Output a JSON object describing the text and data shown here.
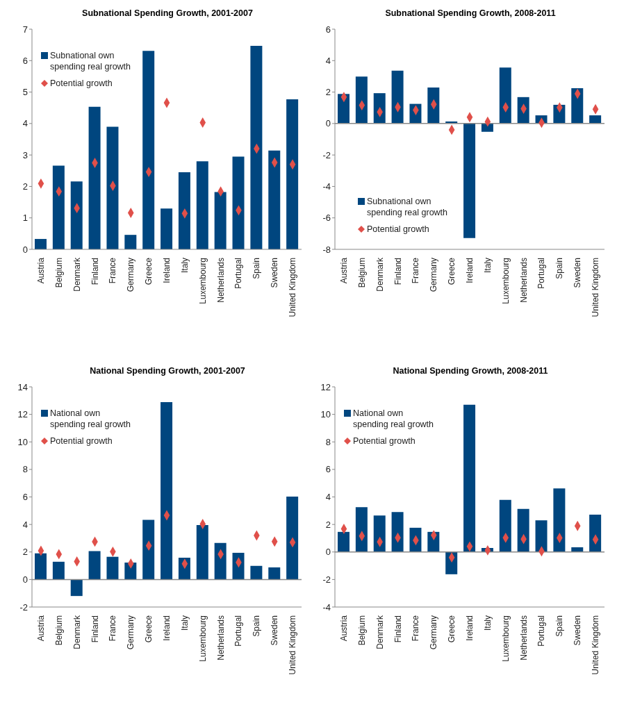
{
  "chart_data": [
    {
      "type": "bar",
      "title": "Subnational Spending Growth, 2001-2007",
      "categories": [
        "Austria",
        "Belgium",
        "Denmark",
        "Finland",
        "France",
        "Germany",
        "Greece",
        "Ireland",
        "Italy",
        "Luxembourg",
        "Netherlands",
        "Portugal",
        "Spain",
        "Sweden",
        "United Kingdom"
      ],
      "series": [
        {
          "name": "Subnational own spending real growth",
          "color": "#00467f",
          "values": [
            0.33,
            2.66,
            2.16,
            4.53,
            3.9,
            0.46,
            6.31,
            1.3,
            2.45,
            2.8,
            1.82,
            2.95,
            6.47,
            3.14,
            4.77
          ]
        },
        {
          "name": "Potential growth",
          "type": "scatter",
          "color": "#e0504a",
          "values": [
            2.09,
            1.84,
            1.31,
            2.75,
            2.02,
            1.16,
            2.46,
            4.66,
            1.14,
            4.03,
            1.84,
            1.24,
            3.2,
            2.76,
            2.7
          ]
        }
      ],
      "ylim": [
        0,
        7
      ],
      "yticks": [
        0,
        1,
        2,
        3,
        4,
        5,
        6,
        7
      ],
      "legend": "top left",
      "marker": "diamond"
    },
    {
      "type": "bar",
      "title": "Subnational Spending Growth, 2008-2011",
      "categories": [
        "Austria",
        "Belgium",
        "Denmark",
        "Finland",
        "France",
        "Germany",
        "Greece",
        "Ireland",
        "Italy",
        "Luxembourg",
        "Netherlands",
        "Portugal",
        "Spain",
        "Sweden",
        "United Kingdom"
      ],
      "series": [
        {
          "name": "Subnational own spending real growth",
          "color": "#00467f",
          "values": [
            1.88,
            2.99,
            1.93,
            3.36,
            1.25,
            2.29,
            0.13,
            -7.28,
            -0.53,
            3.56,
            1.68,
            0.52,
            1.19,
            2.25,
            0.52
          ]
        },
        {
          "name": "Potential growth",
          "type": "scatter",
          "color": "#e0504a",
          "values": [
            1.68,
            1.16,
            0.73,
            1.04,
            0.85,
            1.22,
            -0.4,
            0.4,
            0.12,
            1.03,
            0.94,
            0.05,
            1.02,
            1.89,
            0.91
          ]
        }
      ],
      "ylim": [
        -8,
        6
      ],
      "yticks": [
        -8,
        -6,
        -4,
        -2,
        0,
        2,
        4,
        6
      ],
      "legend": "bottom left",
      "marker": "diamond"
    },
    {
      "type": "bar",
      "title": "National Spending Growth, 2001-2007",
      "categories": [
        "Austria",
        "Belgium",
        "Denmark",
        "Finland",
        "France",
        "Germany",
        "Greece",
        "Ireland",
        "Italy",
        "Luxembourg",
        "Netherlands",
        "Portugal",
        "Spain",
        "Sweden",
        "United Kingdom"
      ],
      "series": [
        {
          "name": "National own spending real growth",
          "color": "#00467f",
          "values": [
            1.9,
            1.29,
            -1.2,
            2.06,
            1.65,
            1.23,
            4.34,
            12.89,
            1.58,
            3.95,
            2.66,
            1.94,
            0.99,
            0.88,
            6.02
          ]
        },
        {
          "name": "Potential growth",
          "type": "scatter",
          "color": "#e0504a",
          "values": [
            2.09,
            1.84,
            1.31,
            2.75,
            2.02,
            1.16,
            2.46,
            4.66,
            1.14,
            4.03,
            1.84,
            1.24,
            3.2,
            2.76,
            2.7
          ]
        }
      ],
      "ylim": [
        -2,
        14
      ],
      "yticks": [
        -2,
        0,
        2,
        4,
        6,
        8,
        10,
        12,
        14
      ],
      "legend": "top left",
      "marker": "diamond"
    },
    {
      "type": "bar",
      "title": "National Spending Growth, 2008-2011",
      "categories": [
        "Austria",
        "Belgium",
        "Denmark",
        "Finland",
        "France",
        "Germany",
        "Greece",
        "Ireland",
        "Italy",
        "Luxembourg",
        "Netherlands",
        "Portugal",
        "Spain",
        "Sweden",
        "United Kingdom"
      ],
      "series": [
        {
          "name": "National own spending real growth",
          "color": "#00467f",
          "values": [
            1.46,
            3.25,
            2.65,
            2.9,
            1.76,
            1.46,
            -1.62,
            10.7,
            0.29,
            3.79,
            3.13,
            2.3,
            4.62,
            0.34,
            2.71
          ]
        },
        {
          "name": "Potential growth",
          "type": "scatter",
          "color": "#e0504a",
          "values": [
            1.68,
            1.16,
            0.73,
            1.04,
            0.85,
            1.22,
            -0.4,
            0.4,
            0.12,
            1.03,
            0.94,
            0.05,
            1.02,
            1.89,
            0.91
          ]
        }
      ],
      "ylim": [
        -4,
        12
      ],
      "yticks": [
        -4,
        -2,
        0,
        2,
        4,
        6,
        8,
        10,
        12
      ],
      "legend": "top left",
      "marker": "diamond"
    }
  ]
}
